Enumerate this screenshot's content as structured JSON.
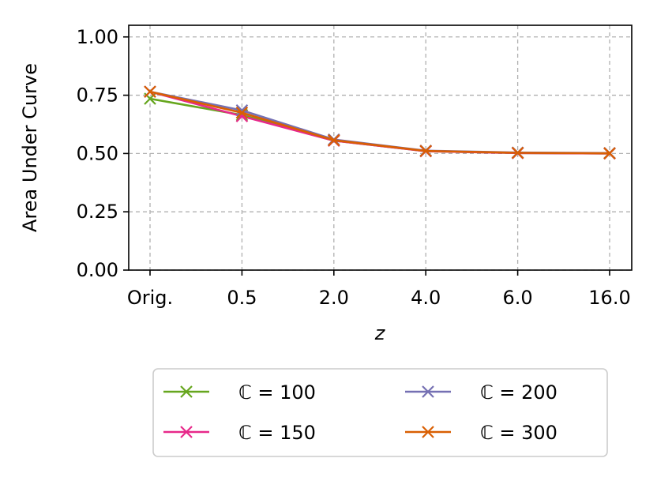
{
  "chart_data": {
    "type": "line",
    "xlabel": "z",
    "ylabel": "Area Under Curve",
    "categories": [
      "Orig.",
      "0.5",
      "2.0",
      "4.0",
      "6.0",
      "16.0"
    ],
    "yticks": [
      "0.00",
      "0.25",
      "0.50",
      "0.75",
      "1.00"
    ],
    "ylim": [
      0,
      1.05
    ],
    "grid": true,
    "grid_style": "dashed",
    "marker": "x",
    "legend_position": "below plot, 2 columns",
    "series": [
      {
        "name": "ℂ = 100",
        "color": "#66a61e",
        "values": [
          0.735,
          0.665,
          0.555,
          0.51,
          0.502,
          0.5
        ]
      },
      {
        "name": "ℂ = 150",
        "color": "#e7298a",
        "values": [
          0.765,
          0.66,
          0.555,
          0.51,
          0.502,
          0.5
        ]
      },
      {
        "name": "ℂ = 200",
        "color": "#7570b3",
        "values": [
          0.765,
          0.685,
          0.56,
          0.512,
          0.504,
          0.502
        ]
      },
      {
        "name": "ℂ = 300",
        "color": "#d95f02",
        "values": [
          0.765,
          0.675,
          0.557,
          0.511,
          0.503,
          0.501
        ]
      }
    ]
  }
}
